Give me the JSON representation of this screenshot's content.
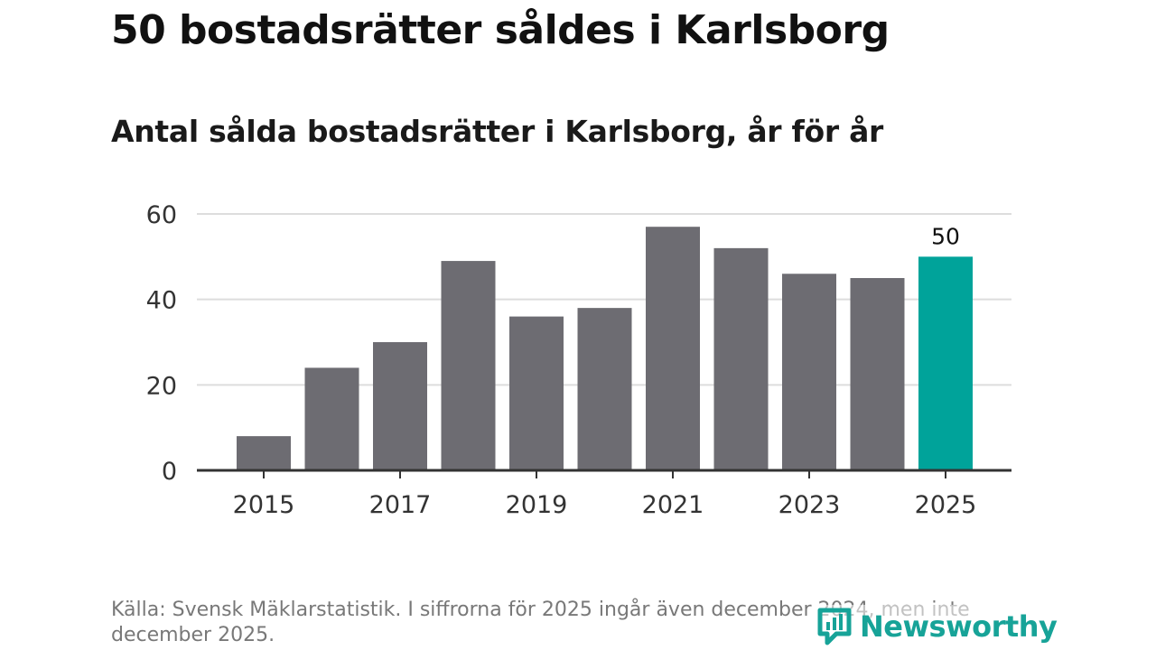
{
  "title": "50 bostadsrätter såldes i Karlsborg",
  "subtitle": "Antal sålda bostadsrätter i Karlsborg, år för år",
  "source": "Källa: Svensk Mäklarstatistik. I siffrorna för 2025 ingår även december 2024, men inte december 2025.",
  "logo_text": "Newsworthy",
  "colors": {
    "bar": "#6d6c72",
    "highlight": "#00a39a",
    "grid": "#dddddd",
    "axis": "#333333",
    "logo": "#17a398"
  },
  "chart_data": {
    "type": "bar",
    "categories": [
      "2015",
      "2016",
      "2017",
      "2018",
      "2019",
      "2020",
      "2021",
      "2022",
      "2023",
      "2024",
      "2025"
    ],
    "values": [
      8,
      24,
      30,
      49,
      36,
      38,
      57,
      52,
      46,
      45,
      50
    ],
    "highlight_index": 10,
    "highlight_label": "50",
    "x_tick_labels": [
      "2015",
      "2017",
      "2019",
      "2021",
      "2023",
      "2025"
    ],
    "y_ticks": [
      0,
      20,
      40,
      60
    ],
    "ylim": [
      0,
      60
    ],
    "grid": true,
    "title": "Antal sålda bostadsrätter i Karlsborg, år för år",
    "xlabel": "",
    "ylabel": ""
  }
}
